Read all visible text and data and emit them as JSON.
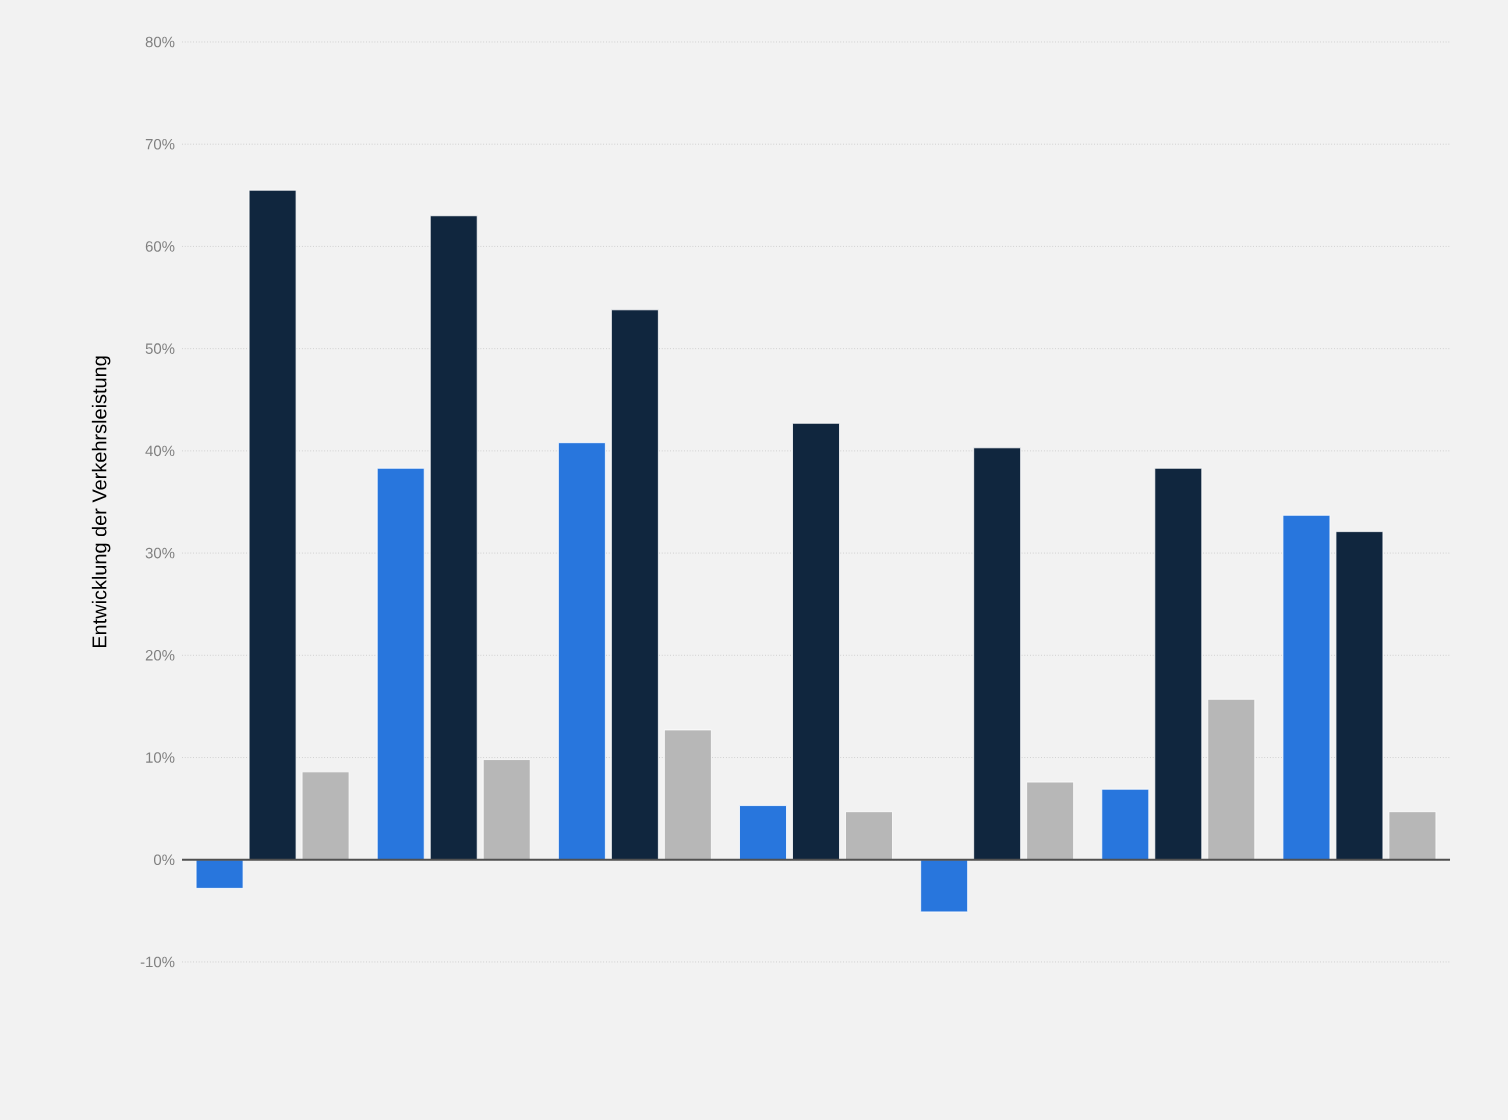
{
  "chart_data": {
    "type": "bar",
    "ylabel": "Entwicklung der Verkehrsleistung",
    "categories": [
      null,
      null,
      null,
      null,
      null,
      null,
      null
    ],
    "series": [
      {
        "color": "#2876dd",
        "values": [
          -2.8,
          38.3,
          40.8,
          5.3,
          -5.1,
          6.9,
          33.7
        ]
      },
      {
        "color": "#10263e",
        "values": [
          65.5,
          63.0,
          53.8,
          42.7,
          40.3,
          38.3,
          32.1
        ]
      },
      {
        "color": "#b7b7b7",
        "values": [
          8.6,
          9.8,
          12.7,
          4.7,
          7.6,
          15.7,
          4.7
        ]
      }
    ],
    "ylim": [
      -10,
      80
    ],
    "yticks": [
      {
        "value": -10,
        "label": "-10%"
      },
      {
        "value": 0,
        "label": "0%"
      },
      {
        "value": 10,
        "label": "10%"
      },
      {
        "value": 20,
        "label": "20%"
      },
      {
        "value": 30,
        "label": "30%"
      },
      {
        "value": 40,
        "label": "40%"
      },
      {
        "value": 50,
        "label": "50%"
      },
      {
        "value": 60,
        "label": "60%"
      },
      {
        "value": 70,
        "label": "70%"
      },
      {
        "value": 80,
        "label": "80%"
      }
    ],
    "grid": "y",
    "tick_labels": "y"
  }
}
